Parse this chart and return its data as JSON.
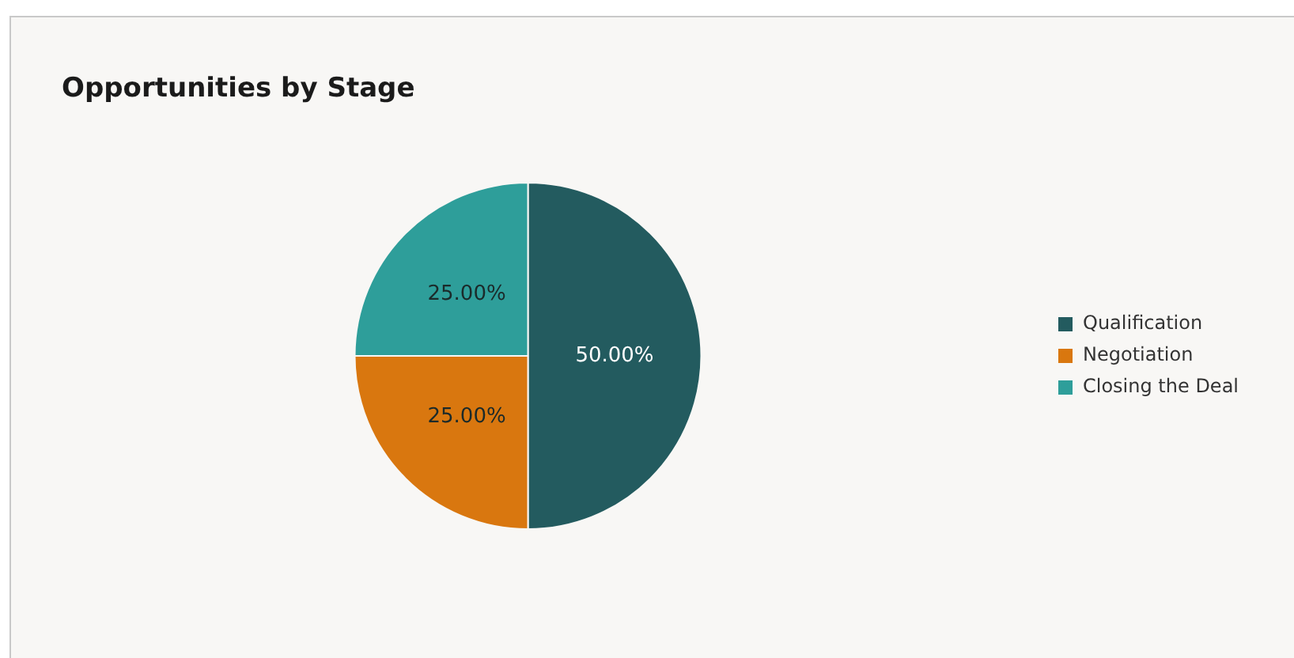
{
  "chart_data": {
    "type": "pie",
    "title": "Opportunities by Stage",
    "categories": [
      "Qualification",
      "Negotiation",
      "Closing the Deal"
    ],
    "values": [
      50,
      25,
      25
    ],
    "colors": [
      "#235b5f",
      "#d9770f",
      "#2e9e9a"
    ],
    "value_labels": [
      "50.00%",
      "25.00%",
      "25.00%"
    ],
    "legend": "right"
  }
}
